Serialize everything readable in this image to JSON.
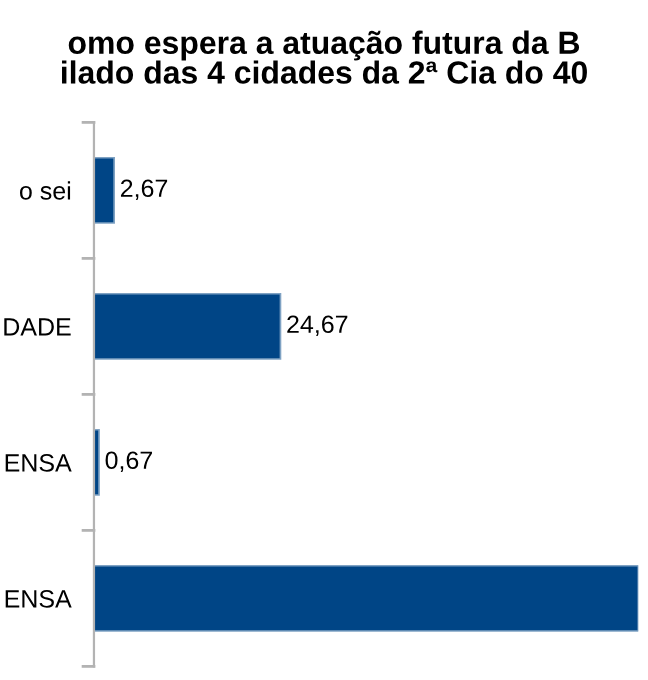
{
  "chart_data": {
    "type": "bar",
    "orientation": "horizontal",
    "title": "omo espera a atuação futura da B\nilado das 4 cidades da 2ª Cia do 40",
    "categories": [
      "o sei",
      "DADE",
      "ENSA",
      "ENSA"
    ],
    "values": [
      2.67,
      24.67,
      0.67,
      72
    ],
    "value_labels": [
      "2,67",
      "24,67",
      "0,67",
      null
    ],
    "color": "#004586",
    "xlim": [
      0,
      72
    ],
    "grid": false,
    "legend": false
  }
}
